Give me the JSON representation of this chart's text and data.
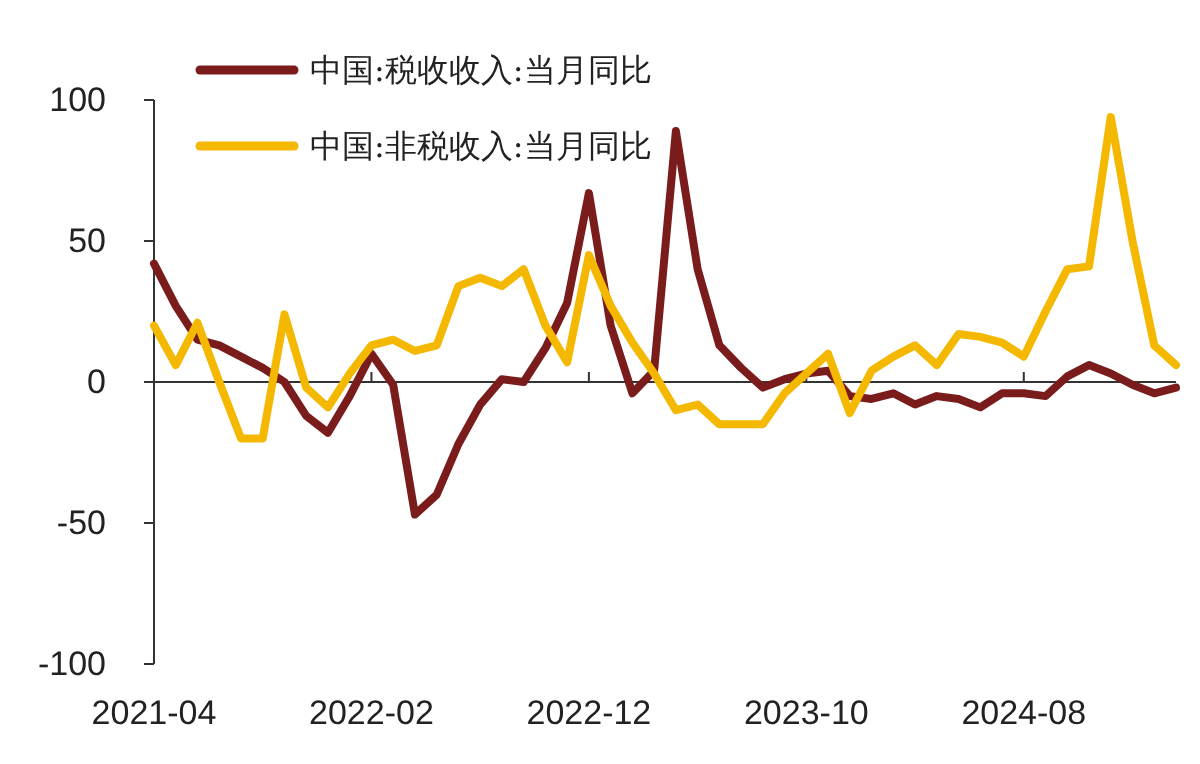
{
  "chart_data": {
    "type": "line",
    "categories": [
      "2021-04",
      null,
      null,
      null,
      null,
      null,
      null,
      null,
      null,
      null,
      "2022-02",
      null,
      null,
      null,
      null,
      null,
      null,
      null,
      null,
      null,
      "2022-12",
      null,
      null,
      null,
      null,
      null,
      null,
      null,
      null,
      null,
      "2023-10",
      null,
      null,
      null,
      null,
      null,
      null,
      null,
      null,
      null,
      "2024-08",
      null,
      null,
      null,
      null,
      null,
      null,
      null
    ],
    "series": [
      {
        "name": "中国:税收收入:当月同比",
        "color": "#7b1c1c",
        "values": [
          42,
          27,
          15,
          13,
          9,
          5,
          0,
          -12,
          -18,
          -5,
          10,
          -1,
          -47,
          -40,
          -22,
          -8,
          1,
          0,
          12,
          28,
          67,
          20,
          -4,
          4,
          89,
          40,
          13,
          5,
          -2,
          1,
          3,
          4,
          -5,
          -6,
          -4,
          -8,
          -5,
          -6,
          -9,
          -4,
          -4,
          -5,
          2,
          6,
          3,
          -1,
          -4,
          -2
        ]
      },
      {
        "name": "中国:非税收入:当月同比",
        "color": "#f5b800",
        "values": [
          20,
          6,
          21,
          0,
          -20,
          -20,
          24,
          -2,
          -9,
          3,
          13,
          15,
          11,
          13,
          34,
          37,
          34,
          40,
          20,
          7,
          45,
          27,
          14,
          3,
          -10,
          -8,
          -15,
          -15,
          -15,
          -4,
          3,
          10,
          -11,
          4,
          9,
          13,
          6,
          17,
          16,
          14,
          9,
          25,
          40,
          41,
          94,
          50,
          13,
          6
        ]
      }
    ],
    "ylim": [
      -100,
      100
    ],
    "yticks": [
      -100,
      -50,
      0,
      50,
      100
    ],
    "legend": "top left",
    "marker": "none",
    "line_style": "solid"
  }
}
